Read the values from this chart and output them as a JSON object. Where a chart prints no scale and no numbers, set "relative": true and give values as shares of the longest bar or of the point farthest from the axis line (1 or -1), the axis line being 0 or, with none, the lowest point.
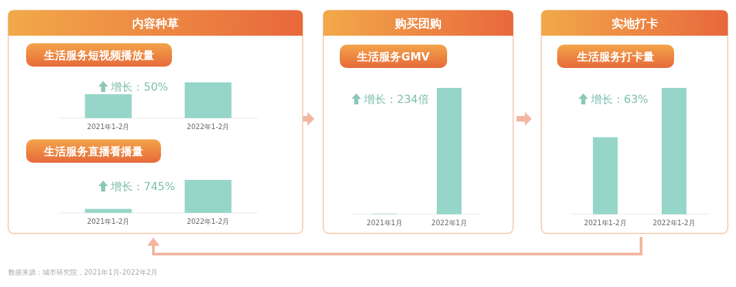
{
  "chart_data": [
    {
      "type": "bar",
      "subtitle": "内容种草",
      "title": "生活服务短视频播放量",
      "categories": [
        "2021年1-2月",
        "2022年1-2月"
      ],
      "values": [
        0.67,
        1
      ],
      "color": "#96d6c9",
      "relative": true,
      "annotations": [
        "增长：50%"
      ]
    },
    {
      "type": "bar",
      "title": "生活服务直播看播量",
      "categories": [
        "2021年1-2月",
        "2022年1-2月"
      ],
      "values": [
        0.12,
        1
      ],
      "color": "#96d6c9",
      "relative": true,
      "annotations": [
        "增长：745%"
      ]
    },
    {
      "type": "bar",
      "subtitle": "购买团购",
      "title": "生活服务GMV",
      "categories": [
        "2021年1月",
        "2022年1月"
      ],
      "values": [
        0.004,
        1
      ],
      "color": "#96d6c9",
      "relative": true,
      "annotations": [
        "增长：234倍"
      ]
    },
    {
      "type": "bar",
      "subtitle": "实地打卡",
      "title": "生活服务打卡量",
      "categories": [
        "2021年1-2月",
        "2022年1-2月"
      ],
      "values": [
        0.61,
        1
      ],
      "color": "#96d6c9",
      "relative": true,
      "annotations": [
        "增长：63%",
        "数据来源：城市研究院，2021年1月-2022年2月"
      ]
    }
  ]
}
